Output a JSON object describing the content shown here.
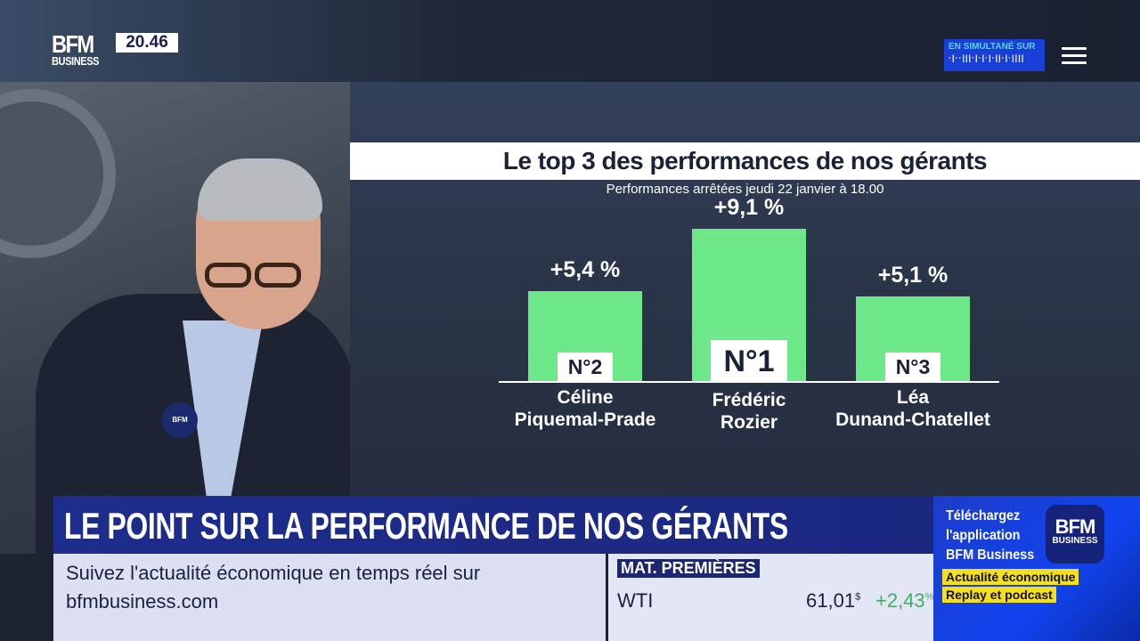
{
  "header": {
    "logo": {
      "brand": "BFM",
      "sub": "BUSINESS"
    },
    "clock": "20.46",
    "simulcast_label": "EN SIMULTANÉ SUR",
    "menu_icon": "hamburger-menu-icon"
  },
  "chart_data": {
    "type": "bar",
    "title": "Le top 3 des performances de nos gérants",
    "subtitle": "Performances arrêtées jeudi 22 janvier à 18.00",
    "categories": [
      "Céline Piquemal-Prade",
      "Frédéric Rozier",
      "Léa Dunand-Chatellet"
    ],
    "names_line1": [
      "Céline",
      "Frédéric",
      "Léa"
    ],
    "names_line2": [
      "Piquemal-Prade",
      "Rozier",
      "Dunand-Chatellet"
    ],
    "values": [
      5.4,
      9.1,
      5.1
    ],
    "value_labels": [
      "+5,4 %",
      "+9,1 %",
      "+5,1 %"
    ],
    "ranks": [
      "N°2",
      "N°1",
      "N°3"
    ],
    "bar_color": "#6ee98a",
    "grid": false
  },
  "lower_third": {
    "headline": "LE POINT SUR LA PERFORMANCE DE NOS GÉRANTS",
    "info_line1": "Suivez l'actualité économique en temps réel sur",
    "info_line2": "bfmbusiness.com"
  },
  "ticker": {
    "section": "MAT. PREMIÈRES",
    "name": "WTI",
    "price": "61,01",
    "price_unit": "$",
    "change": "+2,43",
    "change_unit": "%",
    "change_color": "#3cb35a"
  },
  "promo": {
    "line1": "Téléchargez",
    "line2": "l'application",
    "line3": "BFM Business",
    "app_brand": "BFM",
    "app_sub": "BUSINESS",
    "tag1": "Actualité économique",
    "tag2": "Replay et podcast"
  },
  "mic_label": "BFM"
}
